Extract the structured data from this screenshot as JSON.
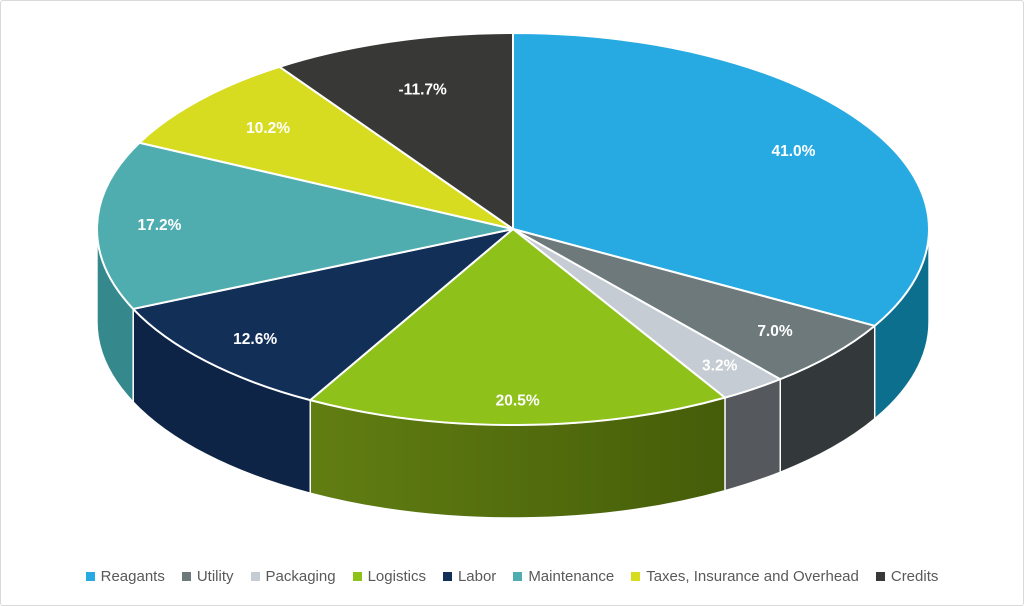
{
  "chart_data": {
    "type": "pie",
    "style": "3d",
    "title": "",
    "legend_position": "bottom",
    "start_angle_deg": 0,
    "direction": "clockwise",
    "categories": [
      "Reagants",
      "Utility",
      "Packaging",
      "Logistics",
      "Labor",
      "Maintenance",
      "Taxes, Insurance and Overhead",
      "Credits"
    ],
    "values": [
      41.0,
      7.0,
      3.2,
      20.5,
      12.6,
      17.2,
      10.2,
      -11.7
    ],
    "data_labels": [
      "41.0%",
      "7.0%",
      "3.2%",
      "20.5%",
      "12.6%",
      "17.2%",
      "10.2%",
      "-11.7%"
    ],
    "colors_top": [
      "#27AAE1",
      "#6E797B",
      "#C5CCD3",
      "#8FC11B",
      "#122F58",
      "#4FADAF",
      "#D7DC20",
      "#383836"
    ],
    "colors_side": [
      "#0D6F8E",
      "#33383A",
      "#55595E",
      "#617E12",
      "#0D2446",
      "#35898C",
      "#9BA017",
      "#1F1F1E"
    ],
    "colors_side2": [
      null,
      null,
      null,
      "#455D09",
      null,
      null,
      null,
      null
    ],
    "label_color": "#FFFFFF",
    "separator_color": "#FFFFFF",
    "legend_text_color": "#595959",
    "background_color": "#FFFFFF",
    "border_color": "#D9D9D9"
  }
}
